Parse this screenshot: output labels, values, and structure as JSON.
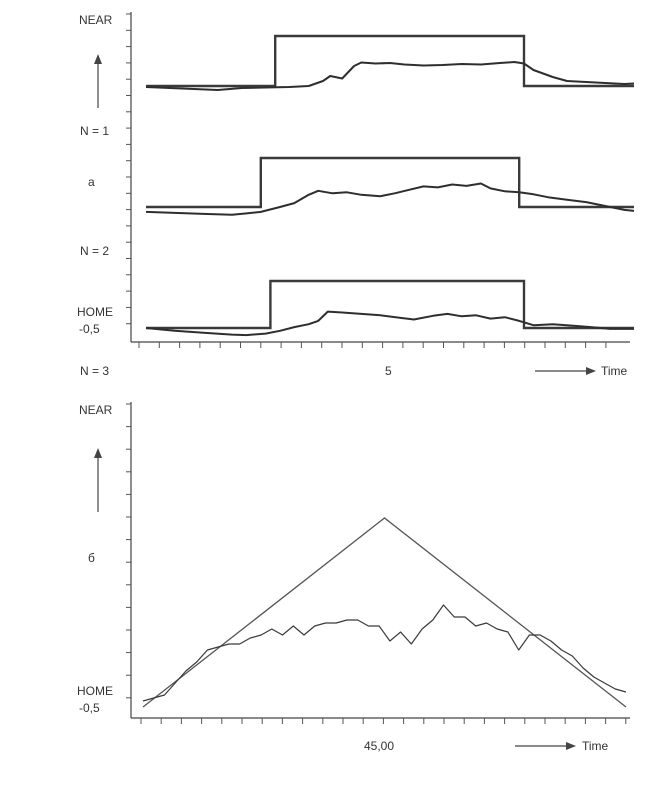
{
  "chart_data": [
    {
      "type": "line",
      "panel_label": "a",
      "y_top_label": "NEAR",
      "y_bottom_label": "HOME",
      "y_bottom_value": "-0,5",
      "x_center_tick_label": "5",
      "x_axis_label": "Time",
      "grid": false,
      "traces": [
        {
          "trial_label": "N = 1",
          "step": {
            "x_start": 0.0,
            "x_on": 2.7,
            "x_off": 7.9,
            "x_end": 10.2,
            "low": 0.0,
            "high": 1.0
          },
          "response": {
            "x": [
              0.0,
              1.0,
              1.5,
              2.0,
              2.5,
              3.0,
              3.4,
              3.7,
              3.85,
              4.1,
              4.35,
              4.5,
              4.8,
              5.1,
              5.4,
              5.8,
              6.2,
              6.6,
              7.0,
              7.4,
              7.7,
              7.9,
              8.1,
              8.3,
              8.5,
              8.8,
              9.2,
              9.6,
              10.0,
              10.2
            ],
            "y": [
              -0.02,
              -0.06,
              -0.08,
              -0.04,
              -0.03,
              -0.02,
              0.0,
              0.1,
              0.2,
              0.15,
              0.4,
              0.47,
              0.45,
              0.46,
              0.43,
              0.41,
              0.42,
              0.44,
              0.43,
              0.46,
              0.48,
              0.45,
              0.32,
              0.25,
              0.18,
              0.1,
              0.08,
              0.06,
              0.04,
              0.05
            ]
          }
        },
        {
          "trial_label": "N = 2",
          "step": {
            "x_start": 0.0,
            "x_on": 2.4,
            "x_off": 7.8,
            "x_end": 10.2,
            "low": 0.0,
            "high": 1.0
          },
          "response": {
            "x": [
              0.0,
              0.6,
              1.2,
              1.8,
              2.1,
              2.4,
              2.8,
              3.1,
              3.4,
              3.6,
              3.9,
              4.2,
              4.5,
              4.9,
              5.2,
              5.5,
              5.8,
              6.1,
              6.4,
              6.7,
              7.0,
              7.2,
              7.5,
              7.8,
              8.1,
              8.4,
              8.8,
              9.2,
              9.6,
              10.0,
              10.2
            ],
            "y": [
              -0.1,
              -0.12,
              -0.14,
              -0.16,
              -0.13,
              -0.1,
              0.0,
              0.08,
              0.25,
              0.33,
              0.28,
              0.3,
              0.25,
              0.22,
              0.28,
              0.35,
              0.42,
              0.4,
              0.46,
              0.43,
              0.48,
              0.38,
              0.32,
              0.3,
              0.26,
              0.2,
              0.15,
              0.1,
              0.02,
              -0.06,
              -0.08
            ]
          }
        },
        {
          "trial_label": "N = 3",
          "step": {
            "x_start": 0.0,
            "x_on": 2.6,
            "x_off": 7.9,
            "x_end": 10.2,
            "low": 0.0,
            "high": 1.0
          },
          "response": {
            "x": [
              0.0,
              0.6,
              1.2,
              1.8,
              2.1,
              2.5,
              2.8,
              3.1,
              3.4,
              3.6,
              3.8,
              4.1,
              4.5,
              4.9,
              5.3,
              5.6,
              6.0,
              6.3,
              6.6,
              6.9,
              7.2,
              7.5,
              7.8,
              8.1,
              8.5,
              8.9,
              9.3,
              9.7,
              10.2
            ],
            "y": [
              0.0,
              -0.06,
              -0.1,
              -0.14,
              -0.15,
              -0.12,
              -0.06,
              0.02,
              0.08,
              0.15,
              0.35,
              0.33,
              0.3,
              0.27,
              0.22,
              0.18,
              0.26,
              0.3,
              0.25,
              0.27,
              0.2,
              0.23,
              0.15,
              0.06,
              0.08,
              0.05,
              0.02,
              -0.02,
              -0.02
            ]
          }
        }
      ]
    },
    {
      "type": "line",
      "panel_label": "б",
      "y_top_label": "NEAR",
      "y_bottom_label": "HOME",
      "y_bottom_value": "-0,5",
      "x_center_tick_label": "45,00",
      "x_axis_label": "Time",
      "grid": false,
      "x_range": [
        0,
        90
      ],
      "reference": {
        "x": [
          0,
          45,
          90
        ],
        "y": [
          0.0,
          0.63,
          0.0
        ]
      },
      "response": {
        "x": [
          0,
          2,
          4,
          6,
          8,
          10,
          12,
          14,
          16,
          18,
          20,
          22,
          24,
          26,
          28,
          30,
          32,
          34,
          36,
          38,
          40,
          42,
          44,
          46,
          48,
          50,
          52,
          54,
          56,
          58,
          60,
          62,
          64,
          66,
          68,
          70,
          72,
          74,
          76,
          78,
          80,
          82,
          84,
          86,
          88,
          90
        ],
        "y": [
          0.02,
          0.03,
          0.04,
          0.08,
          0.12,
          0.15,
          0.19,
          0.2,
          0.21,
          0.21,
          0.23,
          0.24,
          0.26,
          0.24,
          0.27,
          0.24,
          0.27,
          0.28,
          0.28,
          0.29,
          0.29,
          0.27,
          0.27,
          0.22,
          0.25,
          0.21,
          0.26,
          0.29,
          0.34,
          0.3,
          0.3,
          0.27,
          0.28,
          0.26,
          0.25,
          0.19,
          0.24,
          0.24,
          0.22,
          0.19,
          0.17,
          0.13,
          0.1,
          0.08,
          0.06,
          0.05
        ]
      }
    }
  ]
}
